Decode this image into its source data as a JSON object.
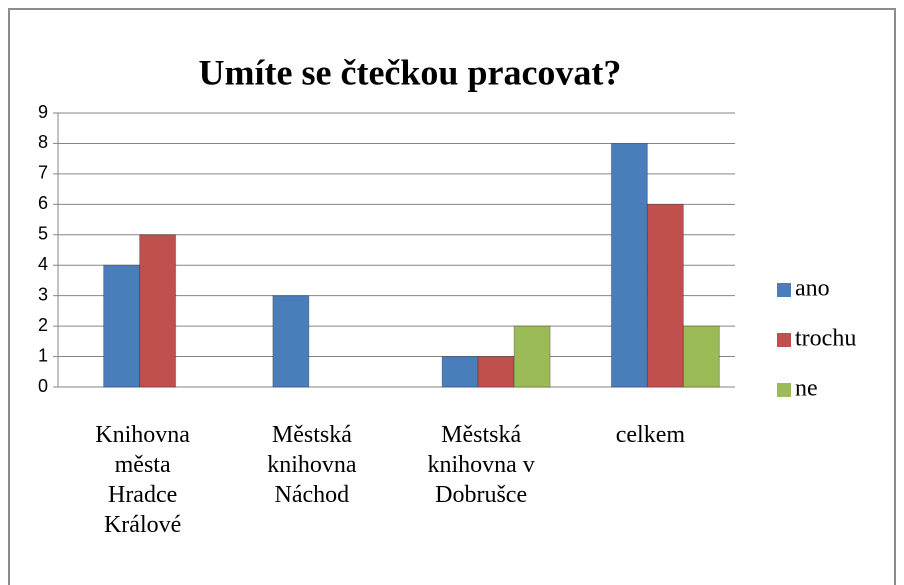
{
  "chart_data": {
    "type": "bar",
    "title": "Umíte se čtečkou pracovat?",
    "categories": [
      "Knihovna města Hradce Králové",
      "Městská knihovna Náchod",
      "Městská knihovna v Dobrušce",
      "celkem"
    ],
    "series": [
      {
        "name": "ano",
        "color": "#4a7ebb",
        "values": [
          4,
          3,
          1,
          8
        ]
      },
      {
        "name": "trochu",
        "color": "#c0504d",
        "values": [
          5,
          0,
          1,
          6
        ]
      },
      {
        "name": "ne",
        "color": "#9bbb59",
        "values": [
          0,
          0,
          2,
          2
        ]
      }
    ],
    "ylim": [
      0,
      9
    ],
    "yticks": [
      0,
      1,
      2,
      3,
      4,
      5,
      6,
      7,
      8,
      9
    ],
    "grid": true,
    "legend": "right"
  }
}
